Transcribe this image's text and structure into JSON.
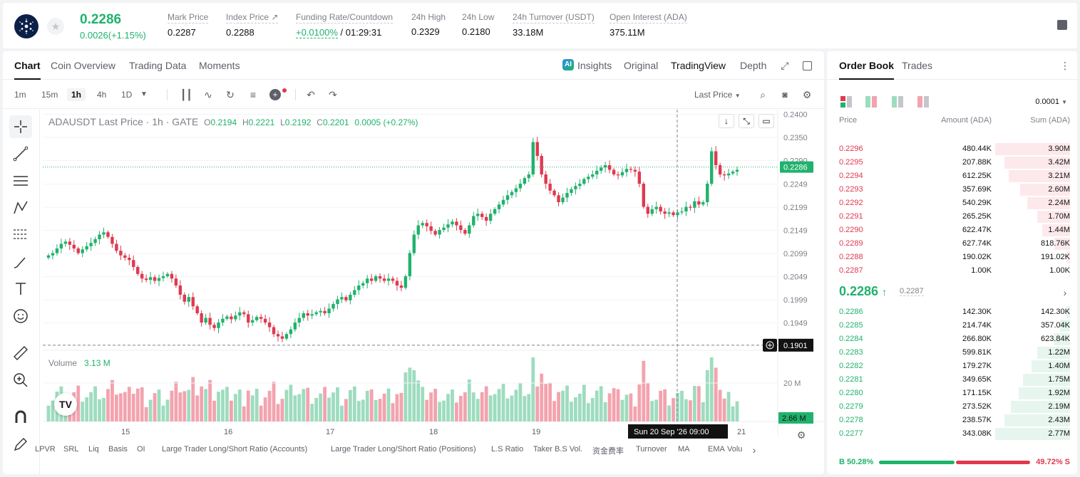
{
  "ticker": {
    "coin_icon": "cardano-icon",
    "last_price": "0.2286",
    "change": "0.0026(+1.15%)",
    "stats": [
      {
        "label": "Mark Price",
        "value": "0.2287"
      },
      {
        "label": "Index Price ↗",
        "value": "0.2288"
      },
      {
        "label": "Funding Rate/Countdown",
        "value_a": "+0.0100%",
        "value_b": " / 01:29:31"
      },
      {
        "label": "24h High",
        "value": "0.2329"
      },
      {
        "label": "24h Low",
        "value": "0.2180"
      },
      {
        "label": "24h Turnover (USDT)",
        "value": "33.18M"
      },
      {
        "label": "Open Interest (ADA)",
        "value": "375.11M"
      }
    ]
  },
  "chart_tabs": [
    "Chart",
    "Coin Overview",
    "Trading Data",
    "Moments"
  ],
  "view_tabs": [
    "Insights",
    "Original",
    "TradingView",
    "Depth"
  ],
  "timeframes": [
    "1m",
    "15m",
    "1h",
    "4h",
    "1D"
  ],
  "active_timeframe": "1h",
  "price_source": "Last Price",
  "legend": {
    "symbol": "ADAUSDT Last Price · 1h · GATE",
    "o": "0.2194",
    "h": "0.2221",
    "l": "0.2192",
    "c": "0.2201",
    "change": "0.0005 (+0.27%)"
  },
  "volume_legend": {
    "label": "Volume",
    "value": "3.13 M"
  },
  "chart_data": {
    "type": "candlestick",
    "symbol": "ADAUSDT",
    "interval": "1h",
    "y_ticks": [
      "0.2400",
      "0.2350",
      "0.2290",
      "0.2249",
      "0.2199",
      "0.2149",
      "0.2099",
      "0.2049",
      "0.1999",
      "0.1949"
    ],
    "ylim": [
      0.189,
      0.241
    ],
    "x_ticks": [
      "15",
      "16",
      "17",
      "18",
      "19",
      "21"
    ],
    "current_price_label": "0.2286",
    "crosshair_price_label": "0.1901",
    "crosshair_time_label": "Sun 20 Sep '26   09:00",
    "volume_ticks": [
      "20 M"
    ],
    "volume_label": "2.66 M",
    "closes": [
      0.2095,
      0.21,
      0.211,
      0.212,
      0.2125,
      0.2118,
      0.211,
      0.21,
      0.2108,
      0.2115,
      0.2122,
      0.213,
      0.214,
      0.2145,
      0.2135,
      0.212,
      0.2105,
      0.2095,
      0.209,
      0.2085,
      0.207,
      0.2055,
      0.2045,
      0.2042,
      0.2048,
      0.204,
      0.2046,
      0.205,
      0.2055,
      0.2045,
      0.203,
      0.201,
      0.1995,
      0.2005,
      0.1985,
      0.197,
      0.195,
      0.196,
      0.1945,
      0.1938,
      0.195,
      0.1958,
      0.1963,
      0.1957,
      0.1965,
      0.1972,
      0.1968,
      0.195,
      0.1955,
      0.1962,
      0.1958,
      0.195,
      0.194,
      0.1925,
      0.192,
      0.1915,
      0.1925,
      0.1935,
      0.195,
      0.196,
      0.197,
      0.1965,
      0.1968,
      0.1972,
      0.1975,
      0.197,
      0.198,
      0.199,
      0.2,
      0.2005,
      0.1998,
      0.201,
      0.202,
      0.203,
      0.2035,
      0.2045,
      0.204,
      0.205,
      0.2045,
      0.204,
      0.2045,
      0.204,
      0.203,
      0.2025,
      0.205,
      0.21,
      0.214,
      0.216,
      0.2165,
      0.2158,
      0.2148,
      0.214,
      0.215,
      0.2155,
      0.2162,
      0.2168,
      0.216,
      0.215,
      0.2142,
      0.216,
      0.218,
      0.2185,
      0.2178,
      0.217,
      0.2185,
      0.2195,
      0.2205,
      0.2215,
      0.2225,
      0.2232,
      0.224,
      0.225,
      0.2262,
      0.227,
      0.234,
      0.231,
      0.227,
      0.225,
      0.2235,
      0.2225,
      0.221,
      0.222,
      0.223,
      0.2238,
      0.2245,
      0.225,
      0.226,
      0.2265,
      0.227,
      0.2278,
      0.2285,
      0.229,
      0.228,
      0.227,
      0.2268,
      0.2275,
      0.2282,
      0.228,
      0.2276,
      0.225,
      0.22,
      0.2185,
      0.2195,
      0.22,
      0.219,
      0.2185,
      0.2188,
      0.2182,
      0.2188,
      0.219,
      0.22,
      0.2198,
      0.2212,
      0.2205,
      0.221,
      0.225,
      0.232,
      0.229,
      0.227,
      0.2268,
      0.2272,
      0.2276,
      0.228
    ]
  },
  "bottom_bar": [
    "LPVR",
    "SRL",
    "Liq",
    "Basis",
    "OI",
    "Large Trader Long/Short Ratio (Accounts)",
    "Large Trader Long/Short Ratio (Positions)",
    "L.S Ratio",
    "Taker B.S Vol.",
    "资金费率",
    "Turnover",
    "MA",
    "EMA",
    "Volu"
  ],
  "orderbook": {
    "tabs": [
      "Order Book",
      "Trades"
    ],
    "tick": "0.0001",
    "headers": {
      "price": "Price",
      "amount": "Amount (ADA)",
      "sum": "Sum (ADA)"
    },
    "asks": [
      {
        "price": "0.2296",
        "amount": "480.44K",
        "sum": "3.90M",
        "depth": 1.0
      },
      {
        "price": "0.2295",
        "amount": "207.88K",
        "sum": "3.42M",
        "depth": 0.88
      },
      {
        "price": "0.2294",
        "amount": "612.25K",
        "sum": "3.21M",
        "depth": 0.82
      },
      {
        "price": "0.2293",
        "amount": "357.69K",
        "sum": "2.60M",
        "depth": 0.67
      },
      {
        "price": "0.2292",
        "amount": "540.29K",
        "sum": "2.24M",
        "depth": 0.57
      },
      {
        "price": "0.2291",
        "amount": "265.25K",
        "sum": "1.70M",
        "depth": 0.44
      },
      {
        "price": "0.2290",
        "amount": "622.47K",
        "sum": "1.44M",
        "depth": 0.37
      },
      {
        "price": "0.2289",
        "amount": "627.74K",
        "sum": "818.76K",
        "depth": 0.21
      },
      {
        "price": "0.2288",
        "amount": "190.02K",
        "sum": "191.02K",
        "depth": 0.05
      },
      {
        "price": "0.2287",
        "amount": "1.00K",
        "sum": "1.00K",
        "depth": 0.01
      }
    ],
    "mid_price": "0.2286",
    "mid_ref": "0.2287",
    "bids": [
      {
        "price": "0.2286",
        "amount": "142.30K",
        "sum": "142.30K",
        "depth": 0.05
      },
      {
        "price": "0.2285",
        "amount": "214.74K",
        "sum": "357.04K",
        "depth": 0.13
      },
      {
        "price": "0.2284",
        "amount": "266.80K",
        "sum": "623.84K",
        "depth": 0.22
      },
      {
        "price": "0.2283",
        "amount": "599.81K",
        "sum": "1.22M",
        "depth": 0.44
      },
      {
        "price": "0.2282",
        "amount": "179.27K",
        "sum": "1.40M",
        "depth": 0.51
      },
      {
        "price": "0.2281",
        "amount": "349.65K",
        "sum": "1.75M",
        "depth": 0.63
      },
      {
        "price": "0.2280",
        "amount": "171.15K",
        "sum": "1.92M",
        "depth": 0.69
      },
      {
        "price": "0.2279",
        "amount": "273.52K",
        "sum": "2.19M",
        "depth": 0.79
      },
      {
        "price": "0.2278",
        "amount": "238.57K",
        "sum": "2.43M",
        "depth": 0.88
      },
      {
        "price": "0.2277",
        "amount": "343.08K",
        "sum": "2.77M",
        "depth": 1.0
      }
    ],
    "buy_ratio": "B 50.28%",
    "sell_ratio": "49.72% S",
    "buy_fraction": 0.5028
  },
  "colors": {
    "up": "#20b26c",
    "down": "#e0394f",
    "up_vol": "#9edcbf",
    "down_vol": "#f3a3ae"
  }
}
